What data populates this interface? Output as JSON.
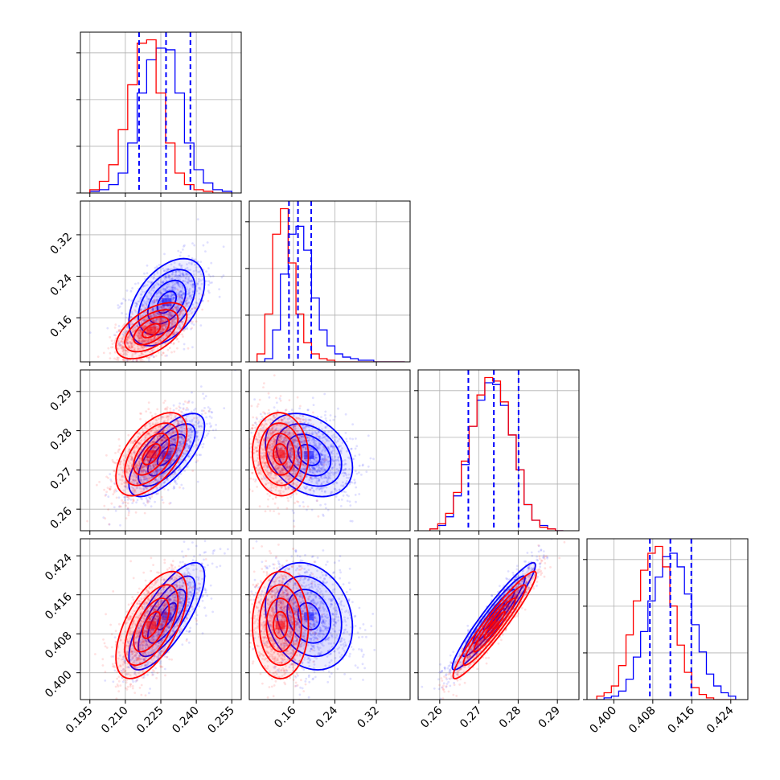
{
  "chart_data": {
    "type": "corner",
    "grid": true,
    "series": [
      {
        "name": "",
        "color": "#0000ff"
      },
      {
        "name": "",
        "color": "#ff0000"
      }
    ],
    "quantile_line_color": "#0000ff",
    "params": [
      {
        "range": [
          0.191,
          0.259
        ],
        "ticks": [
          0.195,
          0.21,
          0.225,
          0.24,
          0.255
        ],
        "tick_labels": [
          "0.195",
          "0.210",
          "0.225",
          "0.240",
          "0.255"
        ]
      },
      {
        "range": [
          0.075,
          0.385
        ],
        "ticks": [
          0.16,
          0.24,
          0.32
        ],
        "tick_labels": [
          "0.16",
          "0.24",
          "0.32"
        ]
      },
      {
        "range": [
          0.2545,
          0.2955
        ],
        "ticks": [
          0.26,
          0.27,
          0.28,
          0.29
        ],
        "tick_labels": [
          "0.26",
          "0.27",
          "0.28",
          "0.29"
        ]
      },
      {
        "range": [
          0.3945,
          0.4275
        ],
        "ticks": [
          0.4,
          0.408,
          0.416,
          0.424
        ],
        "tick_labels": [
          "0.400",
          "0.408",
          "0.416",
          "0.424"
        ]
      }
    ],
    "diagonal": [
      {
        "bin_edges": [
          0.195,
          0.199,
          0.203,
          0.207,
          0.211,
          0.215,
          0.219,
          0.223,
          0.227,
          0.231,
          0.235,
          0.239,
          0.243,
          0.247,
          0.251,
          0.255
        ],
        "series_counts": [
          [
            1,
            2,
            5,
            12,
            30,
            60,
            80,
            87,
            86,
            60,
            30,
            14,
            6,
            2,
            1
          ],
          [
            2,
            7,
            17,
            38,
            65,
            90,
            92,
            60,
            30,
            12,
            5,
            2,
            1,
            0,
            0
          ]
        ],
        "quantiles": [
          0.2158,
          0.2272,
          0.2375
        ]
      },
      {
        "bin_edges": [
          0.09,
          0.105,
          0.12,
          0.135,
          0.15,
          0.165,
          0.18,
          0.195,
          0.21,
          0.225,
          0.24,
          0.255,
          0.27,
          0.285,
          0.3,
          0.315,
          0.33,
          0.345,
          0.36,
          0.375
        ],
        "series_counts": [
          [
            0,
            2,
            20,
            55,
            80,
            85,
            70,
            40,
            20,
            10,
            5,
            3,
            2,
            1,
            1,
            0,
            0,
            0,
            0
          ],
          [
            5,
            30,
            80,
            96,
            62,
            30,
            12,
            5,
            2,
            1,
            0,
            0,
            0,
            0,
            0,
            0,
            0,
            0,
            0
          ]
        ],
        "quantiles": [
          0.1515,
          0.1689,
          0.1944
        ]
      },
      {
        "bin_edges": [
          0.2575,
          0.2595,
          0.2615,
          0.2635,
          0.2655,
          0.2675,
          0.2695,
          0.2715,
          0.2735,
          0.2755,
          0.2775,
          0.2795,
          0.2815,
          0.2835,
          0.2855,
          0.2875,
          0.2895,
          0.2915
        ],
        "series_counts": [
          [
            1,
            3,
            8,
            20,
            38,
            60,
            75,
            85,
            84,
            72,
            55,
            35,
            15,
            6,
            3,
            1,
            0
          ],
          [
            1,
            4,
            10,
            22,
            40,
            60,
            78,
            88,
            86,
            74,
            55,
            35,
            15,
            6,
            2,
            1,
            0
          ]
        ],
        "quantiles": [
          0.2673,
          0.2738,
          0.2801
        ]
      },
      {
        "bin_edges": [
          0.3965,
          0.398,
          0.3995,
          0.401,
          0.4025,
          0.404,
          0.4055,
          0.407,
          0.4085,
          0.41,
          0.4115,
          0.413,
          0.4145,
          0.416,
          0.4175,
          0.419,
          0.4205,
          0.422,
          0.4235,
          0.425
        ],
        "series_counts": [
          [
            0,
            1,
            2,
            5,
            12,
            25,
            40,
            58,
            72,
            84,
            86,
            78,
            62,
            44,
            28,
            15,
            8,
            4,
            2
          ],
          [
            2,
            4,
            8,
            20,
            38,
            58,
            76,
            86,
            90,
            78,
            55,
            32,
            16,
            7,
            3,
            1,
            0,
            0,
            0
          ]
        ],
        "quantiles": [
          0.4074,
          0.4116,
          0.4159
        ]
      }
    ],
    "pairs": [
      {
        "x": 0,
        "y": 1,
        "series": [
          {
            "mean": [
              0.2275,
              0.19
            ],
            "sd": [
              0.008,
              0.042
            ],
            "rho": 0.45
          },
          {
            "mean": [
              0.221,
              0.135
            ],
            "sd": [
              0.0075,
              0.027
            ],
            "rho": 0.55
          }
        ]
      },
      {
        "x": 0,
        "y": 2,
        "series": [
          {
            "mean": [
              0.2275,
              0.2738
            ],
            "sd": [
              0.008,
              0.0053
            ],
            "rho": 0.7
          },
          {
            "mean": [
              0.221,
              0.274
            ],
            "sd": [
              0.0075,
              0.0053
            ],
            "rho": 0.55
          }
        ]
      },
      {
        "x": 1,
        "y": 2,
        "series": [
          {
            "mean": [
              0.19,
              0.2738
            ],
            "sd": [
              0.042,
              0.0053
            ],
            "rho": -0.3
          },
          {
            "mean": [
              0.135,
              0.274
            ],
            "sd": [
              0.027,
              0.0053
            ],
            "rho": -0.05
          }
        ]
      },
      {
        "x": 0,
        "y": 3,
        "series": [
          {
            "mean": [
              0.2275,
              0.4116
            ],
            "sd": [
              0.008,
              0.0055
            ],
            "rho": 0.75
          },
          {
            "mean": [
              0.221,
              0.4098
            ],
            "sd": [
              0.0075,
              0.0055
            ],
            "rho": 0.6
          }
        ]
      },
      {
        "x": 1,
        "y": 3,
        "series": [
          {
            "mean": [
              0.19,
              0.4116
            ],
            "sd": [
              0.042,
              0.0055
            ],
            "rho": -0.2
          },
          {
            "mean": [
              0.135,
              0.4098
            ],
            "sd": [
              0.027,
              0.0055
            ],
            "rho": 0.0
          }
        ]
      },
      {
        "x": 2,
        "y": 3,
        "series": [
          {
            "mean": [
              0.2738,
              0.4116
            ],
            "sd": [
              0.0053,
              0.0055
            ],
            "rho": 0.95
          },
          {
            "mean": [
              0.274,
              0.4098
            ],
            "sd": [
              0.0053,
              0.0055
            ],
            "rho": 0.95
          }
        ]
      }
    ],
    "contour_levels_sigma": [
      0.5,
      1.0,
      1.5,
      2.0
    ]
  }
}
